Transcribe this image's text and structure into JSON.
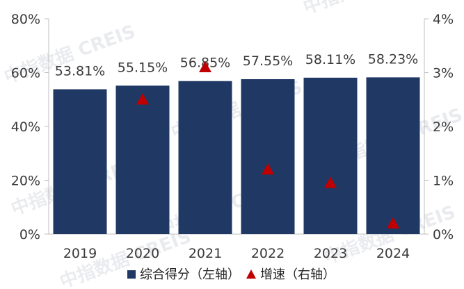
{
  "chart_data": {
    "type": "bar",
    "categories": [
      "2019",
      "2020",
      "2021",
      "2022",
      "2023",
      "2024"
    ],
    "series": [
      {
        "name": "综合得分（左轴）",
        "axis": "left",
        "mark": "bar",
        "color": "#1f3864",
        "values": [
          53.81,
          55.15,
          56.85,
          57.55,
          58.11,
          58.23
        ],
        "labels": [
          "53.81%",
          "55.15%",
          "56.85%",
          "57.55%",
          "58.11%",
          "58.23%"
        ]
      },
      {
        "name": "增速（右轴）",
        "axis": "right",
        "mark": "triangle",
        "color": "#c00000",
        "values": [
          null,
          2.5,
          3.1,
          1.2,
          0.95,
          0.2
        ]
      }
    ],
    "y_left": {
      "ylim": [
        0,
        80
      ],
      "ticks": [
        "0%",
        "20%",
        "40%",
        "60%",
        "80%"
      ]
    },
    "y_right": {
      "ylim": [
        0,
        4
      ],
      "ticks": [
        "0%",
        "1%",
        "2%",
        "3%",
        "4%"
      ]
    },
    "legend": {
      "placement": "bottom"
    },
    "grid": false
  },
  "watermark": {
    "text": "中指数据 CREIS",
    "color": "#d9dce3"
  }
}
